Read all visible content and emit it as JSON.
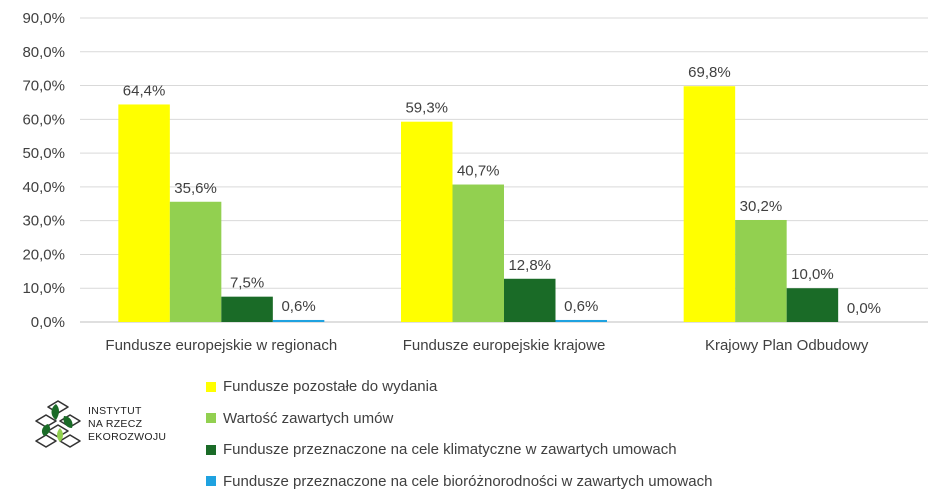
{
  "chart_data": {
    "type": "bar",
    "categories": [
      "Fundusze europejskie w regionach",
      "Fundusze europejskie krajowe",
      "Krajowy Plan Odbudowy"
    ],
    "series": [
      {
        "name": "Fundusze pozostałe do wydania",
        "color": "#ffff00",
        "values": [
          64.4,
          59.3,
          69.8
        ],
        "labels": [
          "64,4%",
          "59,3%",
          "69,8%"
        ]
      },
      {
        "name": "Wartość zawartych umów",
        "color": "#92d050",
        "values": [
          35.6,
          40.7,
          30.2
        ],
        "labels": [
          "35,6%",
          "40,7%",
          "30,2%"
        ]
      },
      {
        "name": "Fundusze przeznaczone na cele klimatyczne w zawartych umowach",
        "color": "#1a6b27",
        "values": [
          7.5,
          12.8,
          10.0
        ],
        "labels": [
          "7,5%",
          "12,8%",
          "10,0%"
        ]
      },
      {
        "name": "Fundusze przeznaczone na cele bioróżnorodności w zawartych umowach",
        "color": "#1fa2e0",
        "values": [
          0.6,
          0.6,
          0.0
        ],
        "labels": [
          "0,6%",
          "0,6%",
          "0,0%"
        ]
      }
    ],
    "yticks": [
      "0,0%",
      "10,0%",
      "20,0%",
      "30,0%",
      "40,0%",
      "50,0%",
      "60,0%",
      "70,0%",
      "80,0%",
      "90,0%"
    ],
    "ylim": [
      0,
      90
    ],
    "grid": true,
    "legend": "bottom"
  },
  "logo": {
    "lines": [
      "INSTYTUT",
      "NA RZECZ",
      "EKOROZWOJU"
    ],
    "icon": "leaf-cube-icon"
  }
}
